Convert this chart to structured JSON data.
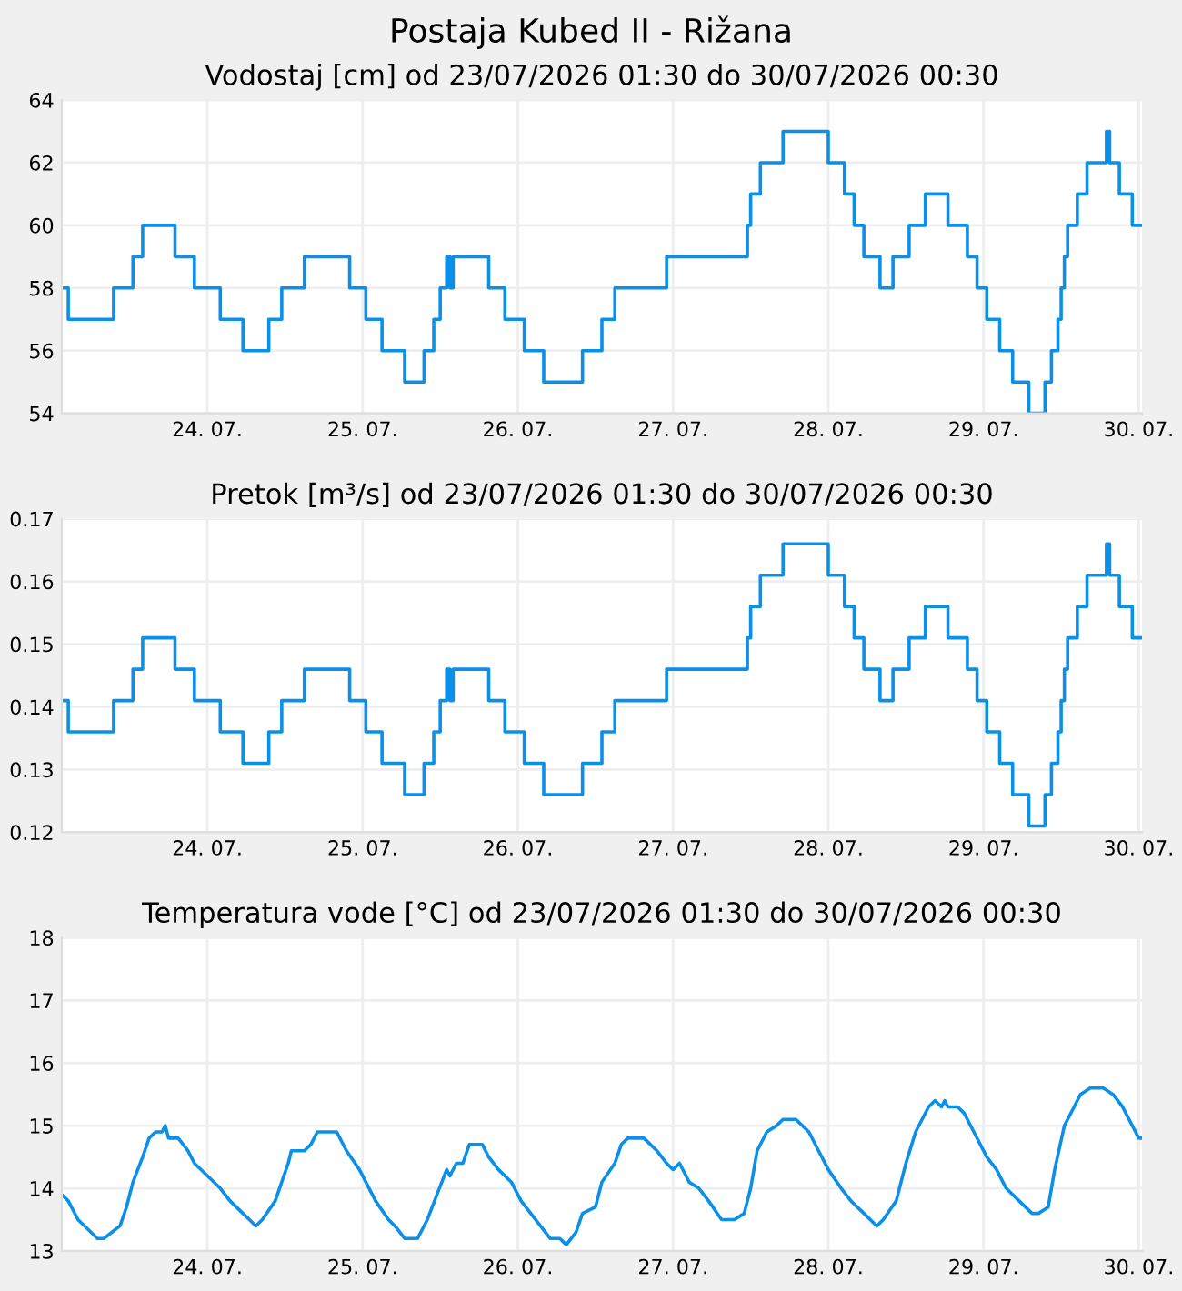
{
  "chart_data": [
    {
      "type": "step",
      "title": "Postaja Kubed II - Rižana",
      "subtitle": "Vodostaj [cm] od 23/07/2026 01:30 do 30/07/2026 00:30",
      "x": [
        "2026-07-23T01:30",
        "2026-07-23T02:30",
        "2026-07-23T09:30",
        "2026-07-23T12:30",
        "2026-07-23T14:00",
        "2026-07-23T19:00",
        "2026-07-23T22:00",
        "2026-07-24T02:00",
        "2026-07-24T05:30",
        "2026-07-24T09:30",
        "2026-07-24T11:30",
        "2026-07-24T15:00",
        "2026-07-24T22:00",
        "2026-07-25T00:30",
        "2026-07-25T03:00",
        "2026-07-25T06:30",
        "2026-07-25T09:30",
        "2026-07-25T11:00",
        "2026-07-25T12:00",
        "2026-07-25T13:00",
        "2026-07-25T13:30",
        "2026-07-25T14:00",
        "2026-07-25T19:30",
        "2026-07-25T22:00",
        "2026-07-26T01:00",
        "2026-07-26T04:00",
        "2026-07-26T10:00",
        "2026-07-26T13:00",
        "2026-07-26T15:00",
        "2026-07-26T23:00",
        "2026-07-27T11:30",
        "2026-07-27T12:00",
        "2026-07-27T13:30",
        "2026-07-27T17:00",
        "2026-07-28T00:00",
        "2026-07-28T02:30",
        "2026-07-28T04:00",
        "2026-07-28T05:30",
        "2026-07-28T08:00",
        "2026-07-28T10:00",
        "2026-07-28T12:30",
        "2026-07-28T15:00",
        "2026-07-28T18:30",
        "2026-07-28T21:30",
        "2026-07-28T23:00",
        "2026-07-29T00:30",
        "2026-07-29T02:30",
        "2026-07-29T04:30",
        "2026-07-29T07:00",
        "2026-07-29T09:30",
        "2026-07-29T10:30",
        "2026-07-29T11:30",
        "2026-07-29T12:00",
        "2026-07-29T12:30",
        "2026-07-29T13:00",
        "2026-07-29T14:30",
        "2026-07-29T16:00",
        "2026-07-29T19:00",
        "2026-07-29T19:30",
        "2026-07-29T21:00",
        "2026-07-29T23:00",
        "2026-07-30T00:30"
      ],
      "series": [
        {
          "color": "#0a90e8",
          "values": [
            58,
            57,
            58,
            59,
            60,
            59,
            58,
            57,
            56,
            57,
            58,
            59,
            58,
            57,
            56,
            55,
            56,
            57,
            58,
            59,
            58,
            59,
            58,
            57,
            56,
            55,
            56,
            57,
            58,
            59,
            60,
            61,
            62,
            63,
            62,
            61,
            60,
            59,
            58,
            59,
            60,
            61,
            60,
            59,
            58,
            57,
            56,
            55,
            54,
            55,
            56,
            57,
            58,
            59,
            60,
            61,
            62,
            63,
            62,
            61,
            60,
            60
          ]
        }
      ],
      "xlim": [
        "2026-07-23T01:30",
        "2026-07-30T00:30"
      ],
      "xticks": [
        {
          "value": "2026-07-24",
          "label": "24. 07."
        },
        {
          "value": "2026-07-25",
          "label": "25. 07."
        },
        {
          "value": "2026-07-26",
          "label": "26. 07."
        },
        {
          "value": "2026-07-27",
          "label": "27. 07."
        },
        {
          "value": "2026-07-28",
          "label": "28. 07."
        },
        {
          "value": "2026-07-29",
          "label": "29. 07."
        },
        {
          "value": "2026-07-30",
          "label": "30. 07."
        }
      ],
      "ylim": [
        54,
        64
      ],
      "yticks": [
        54,
        56,
        58,
        60,
        62,
        64
      ],
      "grid": true,
      "marker": "none",
      "line_style": "solid"
    },
    {
      "type": "step",
      "title": "Pretok [m³/s] od 23/07/2026 01:30 do 30/07/2026 00:30",
      "x": [
        "2026-07-23T01:30",
        "2026-07-23T02:30",
        "2026-07-23T09:30",
        "2026-07-23T12:30",
        "2026-07-23T14:00",
        "2026-07-23T19:00",
        "2026-07-23T22:00",
        "2026-07-24T02:00",
        "2026-07-24T05:30",
        "2026-07-24T09:30",
        "2026-07-24T11:30",
        "2026-07-24T15:00",
        "2026-07-24T22:00",
        "2026-07-25T00:30",
        "2026-07-25T03:00",
        "2026-07-25T06:30",
        "2026-07-25T09:30",
        "2026-07-25T11:00",
        "2026-07-25T12:00",
        "2026-07-25T13:00",
        "2026-07-25T13:30",
        "2026-07-25T14:00",
        "2026-07-25T19:30",
        "2026-07-25T22:00",
        "2026-07-26T01:00",
        "2026-07-26T04:00",
        "2026-07-26T10:00",
        "2026-07-26T13:00",
        "2026-07-26T15:00",
        "2026-07-26T23:00",
        "2026-07-27T11:30",
        "2026-07-27T12:00",
        "2026-07-27T13:30",
        "2026-07-27T17:00",
        "2026-07-28T00:00",
        "2026-07-28T02:30",
        "2026-07-28T04:00",
        "2026-07-28T05:30",
        "2026-07-28T08:00",
        "2026-07-28T10:00",
        "2026-07-28T12:30",
        "2026-07-28T15:00",
        "2026-07-28T18:30",
        "2026-07-28T21:30",
        "2026-07-28T23:00",
        "2026-07-29T00:30",
        "2026-07-29T02:30",
        "2026-07-29T04:30",
        "2026-07-29T07:00",
        "2026-07-29T09:30",
        "2026-07-29T10:30",
        "2026-07-29T11:30",
        "2026-07-29T12:00",
        "2026-07-29T12:30",
        "2026-07-29T13:00",
        "2026-07-29T14:30",
        "2026-07-29T16:00",
        "2026-07-29T19:00",
        "2026-07-29T19:30",
        "2026-07-29T21:00",
        "2026-07-29T23:00",
        "2026-07-30T00:30"
      ],
      "series": [
        {
          "color": "#0a90e8",
          "values": [
            0.141,
            0.136,
            0.141,
            0.146,
            0.151,
            0.146,
            0.141,
            0.136,
            0.131,
            0.136,
            0.141,
            0.146,
            0.141,
            0.136,
            0.131,
            0.126,
            0.131,
            0.136,
            0.141,
            0.146,
            0.141,
            0.146,
            0.141,
            0.136,
            0.131,
            0.126,
            0.131,
            0.136,
            0.141,
            0.146,
            0.151,
            0.156,
            0.161,
            0.166,
            0.161,
            0.156,
            0.151,
            0.146,
            0.141,
            0.146,
            0.151,
            0.156,
            0.151,
            0.146,
            0.141,
            0.136,
            0.131,
            0.126,
            0.121,
            0.126,
            0.131,
            0.136,
            0.141,
            0.146,
            0.151,
            0.156,
            0.161,
            0.166,
            0.161,
            0.156,
            0.151,
            0.151
          ]
        }
      ],
      "xlim": [
        "2026-07-23T01:30",
        "2026-07-30T00:30"
      ],
      "xticks": [
        {
          "value": "2026-07-24",
          "label": "24. 07."
        },
        {
          "value": "2026-07-25",
          "label": "25. 07."
        },
        {
          "value": "2026-07-26",
          "label": "26. 07."
        },
        {
          "value": "2026-07-27",
          "label": "27. 07."
        },
        {
          "value": "2026-07-28",
          "label": "28. 07."
        },
        {
          "value": "2026-07-29",
          "label": "29. 07."
        },
        {
          "value": "2026-07-30",
          "label": "30. 07."
        }
      ],
      "ylim": [
        0.12,
        0.17
      ],
      "yticks": [
        0.12,
        0.13,
        0.14,
        0.15,
        0.16,
        0.17
      ],
      "grid": true,
      "marker": "none",
      "line_style": "solid"
    },
    {
      "type": "line",
      "title": "Temperatura vode [°C] od 23/07/2026 01:30 do 30/07/2026 00:30",
      "x": [
        "2026-07-23T01:30",
        "2026-07-23T02:30",
        "2026-07-23T04:00",
        "2026-07-23T06:00",
        "2026-07-23T07:00",
        "2026-07-23T08:00",
        "2026-07-23T10:30",
        "2026-07-23T11:30",
        "2026-07-23T12:30",
        "2026-07-23T14:00",
        "2026-07-23T15:00",
        "2026-07-23T16:00",
        "2026-07-23T17:00",
        "2026-07-23T17:30",
        "2026-07-23T18:00",
        "2026-07-23T19:30",
        "2026-07-23T21:00",
        "2026-07-23T22:00",
        "2026-07-24T00:00",
        "2026-07-24T02:00",
        "2026-07-24T03:30",
        "2026-07-24T05:30",
        "2026-07-24T06:30",
        "2026-07-24T07:30",
        "2026-07-24T08:30",
        "2026-07-24T10:30",
        "2026-07-24T11:30",
        "2026-07-24T12:30",
        "2026-07-24T13:00",
        "2026-07-24T15:00",
        "2026-07-24T16:00",
        "2026-07-24T17:00",
        "2026-07-24T20:00",
        "2026-07-24T21:30",
        "2026-07-24T23:30",
        "2026-07-25T00:30",
        "2026-07-25T02:00",
        "2026-07-25T04:00",
        "2026-07-25T05:00",
        "2026-07-25T06:30",
        "2026-07-25T08:30",
        "2026-07-25T10:00",
        "2026-07-25T11:30",
        "2026-07-25T13:00",
        "2026-07-25T13:30",
        "2026-07-25T14:30",
        "2026-07-25T15:30",
        "2026-07-25T16:30",
        "2026-07-25T18:30",
        "2026-07-25T19:30",
        "2026-07-25T21:00",
        "2026-07-25T23:00",
        "2026-07-26T00:30",
        "2026-07-26T02:00",
        "2026-07-26T03:30",
        "2026-07-26T05:00",
        "2026-07-26T06:30",
        "2026-07-26T07:30",
        "2026-07-26T09:00",
        "2026-07-26T10:00",
        "2026-07-26T12:00",
        "2026-07-26T13:00",
        "2026-07-26T15:00",
        "2026-07-26T16:00",
        "2026-07-26T17:00",
        "2026-07-26T19:30",
        "2026-07-26T21:30",
        "2026-07-26T23:00",
        "2026-07-27T00:00",
        "2026-07-27T01:00",
        "2026-07-27T02:30",
        "2026-07-27T04:00",
        "2026-07-27T05:30",
        "2026-07-27T07:30",
        "2026-07-27T09:30",
        "2026-07-27T11:00",
        "2026-07-27T12:00",
        "2026-07-27T13:00",
        "2026-07-27T14:30",
        "2026-07-27T16:00",
        "2026-07-27T17:00",
        "2026-07-27T19:00",
        "2026-07-27T21:00",
        "2026-07-27T22:30",
        "2026-07-28T00:00",
        "2026-07-28T02:00",
        "2026-07-28T03:30",
        "2026-07-28T05:30",
        "2026-07-28T07:30",
        "2026-07-28T08:30",
        "2026-07-28T10:30",
        "2026-07-28T12:00",
        "2026-07-28T13:30",
        "2026-07-28T14:30",
        "2026-07-28T15:30",
        "2026-07-28T16:30",
        "2026-07-28T17:30",
        "2026-07-28T18:00",
        "2026-07-28T18:30",
        "2026-07-28T20:00",
        "2026-07-28T21:00",
        "2026-07-28T22:30",
        "2026-07-29T00:30",
        "2026-07-29T02:00",
        "2026-07-29T03:30",
        "2026-07-29T05:30",
        "2026-07-29T07:30",
        "2026-07-29T08:30",
        "2026-07-29T10:00",
        "2026-07-29T11:00",
        "2026-07-29T12:30",
        "2026-07-29T14:00",
        "2026-07-29T15:00",
        "2026-07-29T16:30",
        "2026-07-29T18:30",
        "2026-07-29T20:00",
        "2026-07-29T21:30",
        "2026-07-29T22:00",
        "2026-07-29T23:30",
        "2026-07-30T00:00",
        "2026-07-30T00:30"
      ],
      "series": [
        {
          "color": "#0a90e8",
          "values": [
            13.9,
            13.8,
            13.5,
            13.3,
            13.2,
            13.2,
            13.4,
            13.7,
            14.1,
            14.5,
            14.8,
            14.9,
            14.9,
            15.0,
            14.8,
            14.8,
            14.6,
            14.4,
            14.2,
            14.0,
            13.8,
            13.6,
            13.5,
            13.4,
            13.5,
            13.8,
            14.1,
            14.4,
            14.6,
            14.6,
            14.7,
            14.9,
            14.9,
            14.6,
            14.3,
            14.1,
            13.8,
            13.5,
            13.4,
            13.2,
            13.2,
            13.5,
            13.9,
            14.3,
            14.2,
            14.4,
            14.4,
            14.7,
            14.7,
            14.5,
            14.3,
            14.1,
            13.8,
            13.6,
            13.4,
            13.2,
            13.2,
            13.1,
            13.3,
            13.6,
            13.7,
            14.1,
            14.4,
            14.7,
            14.8,
            14.8,
            14.6,
            14.4,
            14.3,
            14.4,
            14.1,
            14.0,
            13.8,
            13.5,
            13.5,
            13.6,
            14.0,
            14.6,
            14.9,
            15.0,
            15.1,
            15.1,
            14.9,
            14.6,
            14.3,
            14.0,
            13.8,
            13.6,
            13.4,
            13.5,
            13.8,
            14.4,
            14.9,
            15.1,
            15.3,
            15.4,
            15.3,
            15.4,
            15.3,
            15.3,
            15.2,
            14.9,
            14.5,
            14.3,
            14.0,
            13.8,
            13.6,
            13.6,
            13.7,
            14.3,
            15.0,
            15.3,
            15.5,
            15.6,
            15.6,
            15.5,
            15.3,
            15.2,
            14.9,
            14.8,
            14.8
          ]
        }
      ],
      "xlim": [
        "2026-07-23T01:30",
        "2026-07-30T00:30"
      ],
      "xticks": [
        {
          "value": "2026-07-24",
          "label": "24. 07."
        },
        {
          "value": "2026-07-25",
          "label": "25. 07."
        },
        {
          "value": "2026-07-26",
          "label": "26. 07."
        },
        {
          "value": "2026-07-27",
          "label": "27. 07."
        },
        {
          "value": "2026-07-28",
          "label": "28. 07."
        },
        {
          "value": "2026-07-29",
          "label": "29. 07."
        },
        {
          "value": "2026-07-30",
          "label": "30. 07."
        }
      ],
      "ylim": [
        13,
        18
      ],
      "yticks": [
        13,
        14,
        15,
        16,
        17,
        18
      ],
      "grid": true,
      "marker": "none",
      "line_style": "solid"
    }
  ]
}
